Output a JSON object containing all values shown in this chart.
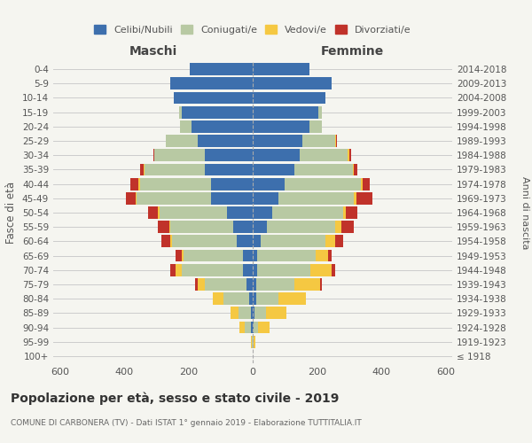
{
  "age_groups": [
    "100+",
    "95-99",
    "90-94",
    "85-89",
    "80-84",
    "75-79",
    "70-74",
    "65-69",
    "60-64",
    "55-59",
    "50-54",
    "45-49",
    "40-44",
    "35-39",
    "30-34",
    "25-29",
    "20-24",
    "15-19",
    "10-14",
    "5-9",
    "0-4"
  ],
  "birth_years": [
    "≤ 1918",
    "1919-1923",
    "1924-1928",
    "1929-1933",
    "1934-1938",
    "1939-1943",
    "1944-1948",
    "1949-1953",
    "1954-1958",
    "1959-1963",
    "1964-1968",
    "1969-1973",
    "1974-1978",
    "1979-1983",
    "1984-1988",
    "1989-1993",
    "1994-1998",
    "1999-2003",
    "2004-2008",
    "2009-2013",
    "2014-2018"
  ],
  "maschi": {
    "celibi": [
      0,
      0,
      5,
      5,
      10,
      20,
      30,
      30,
      50,
      60,
      80,
      130,
      130,
      150,
      150,
      170,
      190,
      220,
      245,
      255,
      195
    ],
    "coniugati": [
      0,
      2,
      20,
      40,
      80,
      130,
      190,
      185,
      200,
      195,
      210,
      230,
      220,
      185,
      155,
      100,
      35,
      10,
      0,
      0,
      0
    ],
    "vedovi": [
      0,
      3,
      15,
      25,
      35,
      20,
      20,
      5,
      5,
      5,
      5,
      5,
      5,
      5,
      0,
      0,
      0,
      0,
      0,
      0,
      0
    ],
    "divorziati": [
      0,
      0,
      0,
      0,
      0,
      10,
      15,
      20,
      30,
      35,
      30,
      30,
      25,
      10,
      5,
      0,
      0,
      0,
      0,
      0,
      0
    ]
  },
  "femmine": {
    "nubili": [
      0,
      0,
      2,
      5,
      10,
      10,
      15,
      15,
      25,
      45,
      60,
      80,
      100,
      130,
      145,
      155,
      175,
      205,
      225,
      245,
      175
    ],
    "coniugate": [
      0,
      3,
      15,
      35,
      70,
      120,
      165,
      180,
      200,
      210,
      220,
      235,
      235,
      180,
      150,
      100,
      40,
      10,
      0,
      0,
      0
    ],
    "vedove": [
      0,
      5,
      35,
      65,
      85,
      80,
      65,
      40,
      30,
      20,
      10,
      8,
      8,
      5,
      5,
      3,
      0,
      0,
      0,
      0,
      0
    ],
    "divorziate": [
      0,
      0,
      0,
      0,
      0,
      5,
      10,
      10,
      25,
      40,
      35,
      50,
      20,
      10,
      5,
      3,
      0,
      0,
      0,
      0,
      0
    ]
  },
  "colors": {
    "celibi_nubili": "#3d6fad",
    "coniugati": "#b8c9a3",
    "vedovi": "#f5c842",
    "divorziati": "#c0322a"
  },
  "xlim": 620,
  "title": "Popolazione per età, sesso e stato civile - 2019",
  "subtitle": "COMUNE DI CARBONERA (TV) - Dati ISTAT 1° gennaio 2019 - Elaborazione TUTTITALIA.IT",
  "ylabel_left": "Fasce di età",
  "ylabel_right": "Anni di nascita",
  "xlabel_left": "Maschi",
  "xlabel_right": "Femmine",
  "background_color": "#f5f5f0",
  "grid_color": "#cccccc",
  "bar_height": 0.85
}
